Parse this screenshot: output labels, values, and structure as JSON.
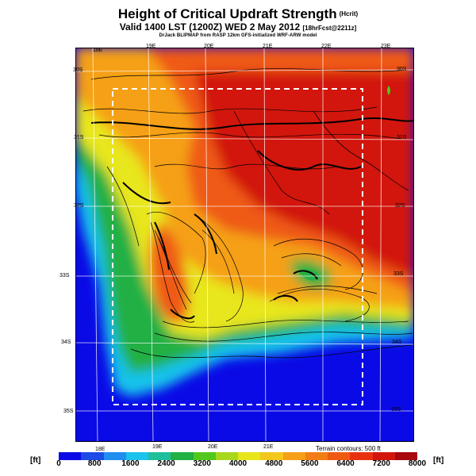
{
  "header": {
    "title": "Height of Critical Updraft Strength",
    "title_suffix": "(Hcrit)",
    "valid_line": "Valid 1400 LST (1200Z) WED 2 May 2012",
    "forecast_tag": "[18hrFcst@2211z]",
    "model_line": "DrJack BLIPMAP from RASP 12km GFS-initialized WRF-ARW model"
  },
  "map": {
    "top_lon_labels": [
      "18E",
      "19E",
      "20E",
      "21E",
      "22E",
      "23E"
    ],
    "bottom_lon_labels": [
      "18E",
      "19E",
      "20E",
      "21E"
    ],
    "left_lat_labels": [
      "30S",
      "31S",
      "32S",
      "33S",
      "34S",
      "35S"
    ],
    "right_lat_labels": [
      "30S",
      "31S",
      "32S",
      "33S",
      "34S",
      "35S"
    ]
  },
  "terrain_note": "Terrain contours: 500 ft",
  "colorbar": {
    "unit_left": "[ft]",
    "unit_right": "[ft]",
    "ticks": [
      "0",
      "800",
      "1600",
      "2400",
      "3200",
      "4000",
      "4800",
      "5600",
      "6400",
      "7200",
      "8000"
    ],
    "colors": [
      "#0a0ae6",
      "#1e4be6",
      "#1f8ef0",
      "#19c3eb",
      "#1fbf9b",
      "#22b044",
      "#52c81e",
      "#a8d81c",
      "#e8e61b",
      "#f3c71b",
      "#f5a017",
      "#f27d15",
      "#ef5a13",
      "#e8320f",
      "#d2160c",
      "#a6080e"
    ]
  }
}
